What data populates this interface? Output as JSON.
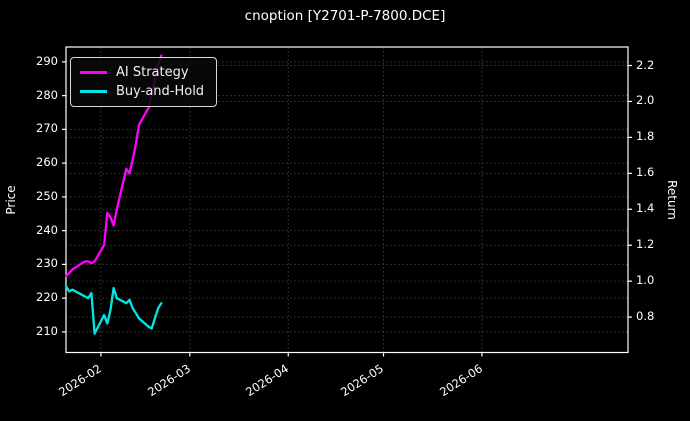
{
  "title": "cnoption [Y2701-P-7800.DCE]",
  "chart_data": {
    "type": "line",
    "title": "cnoption [Y2701-P-7800.DCE]",
    "ylabel_left": "Price",
    "ylabel_right": "Return",
    "background_color": "#000000",
    "grid": "dotted gridlines on, both y-axes and monthly x ticks",
    "grid_color": "#3c3c3c",
    "legend_position": "upper left",
    "xlim": [
      "2026-01-21",
      "2026-07-17"
    ],
    "ylim_left": [
      203.9,
      294.4
    ],
    "ylim_right": [
      0.603,
      2.303
    ],
    "x_ticks": [
      {
        "date": "2026-02-01",
        "label": "2026-02"
      },
      {
        "date": "2026-03-01",
        "label": "2026-03"
      },
      {
        "date": "2026-04-01",
        "label": "2026-04"
      },
      {
        "date": "2026-05-01",
        "label": "2026-05"
      },
      {
        "date": "2026-06-01",
        "label": "2026-06"
      }
    ],
    "y_ticks_left": [
      210,
      220,
      230,
      240,
      250,
      260,
      270,
      280,
      290
    ],
    "y_ticks_right": [
      0.8,
      1.0,
      1.2,
      1.4,
      1.6,
      1.8,
      2.0,
      2.2
    ],
    "dates": [
      "2026-01-21",
      "2026-01-22",
      "2026-01-23",
      "2026-01-26",
      "2026-01-27",
      "2026-01-28",
      "2026-01-29",
      "2026-01-30",
      "2026-02-02",
      "2026-02-03",
      "2026-02-04",
      "2026-02-05",
      "2026-02-06",
      "2026-02-09",
      "2026-02-10",
      "2026-02-11",
      "2026-02-12",
      "2026-02-13",
      "2026-02-16",
      "2026-02-17",
      "2026-02-18",
      "2026-02-19",
      "2026-02-20"
    ],
    "series": [
      {
        "name": "AI Strategy",
        "axis": "right",
        "color": "#ff00ff",
        "values": [
          1.03,
          1.045,
          1.065,
          1.1,
          1.11,
          1.11,
          1.1,
          1.11,
          1.2,
          1.38,
          1.355,
          1.31,
          1.4,
          1.625,
          1.6,
          1.675,
          1.765,
          1.87,
          1.965,
          2.04,
          2.12,
          2.205,
          2.255
        ]
      },
      {
        "name": "Buy-and-Hold",
        "axis": "left",
        "color": "#00e6e6",
        "values": [
          223.5,
          222.0,
          222.5,
          221.0,
          220.5,
          220.0,
          221.5,
          209.5,
          215.0,
          212.5,
          216.5,
          223.0,
          220.0,
          218.5,
          219.5,
          217.0,
          215.5,
          214.0,
          211.5,
          211.0,
          214.0,
          217.0,
          218.5
        ]
      }
    ]
  }
}
